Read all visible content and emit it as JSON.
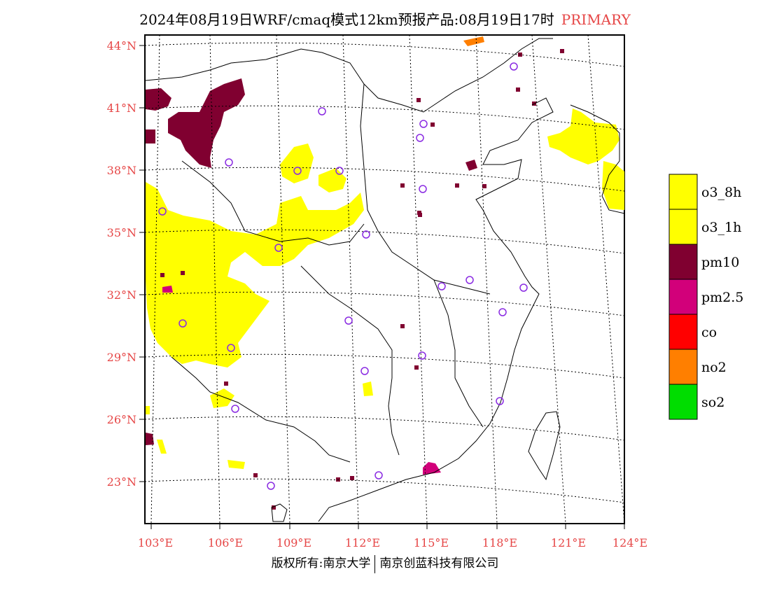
{
  "title": {
    "main": "2024年08月19日WRF/cmaq模式12km预报产品:08月19日17时",
    "tag": "PRIMARY"
  },
  "lat_labels": [
    "44°N",
    "41°N",
    "38°N",
    "35°N",
    "32°N",
    "29°N",
    "26°N",
    "23°N"
  ],
  "lon_labels": [
    "103°E",
    "106°E",
    "109°E",
    "112°E",
    "115°E",
    "118°E",
    "121°E",
    "124°E"
  ],
  "legend": [
    {
      "label": "o3_8h",
      "color": "#ffff00"
    },
    {
      "label": "o3_1h",
      "color": "#ffff00"
    },
    {
      "label": "pm10",
      "color": "#800030"
    },
    {
      "label": "pm2.5",
      "color": "#d2007a"
    },
    {
      "label": "co",
      "color": "#ff0000"
    },
    {
      "label": "no2",
      "color": "#ff7f00"
    },
    {
      "label": "so2",
      "color": "#00dd00"
    }
  ],
  "station_color": "#8a2be2",
  "footer": {
    "left": "版权所有:南京大学",
    "right": "南京创蓝科技有限公司"
  }
}
